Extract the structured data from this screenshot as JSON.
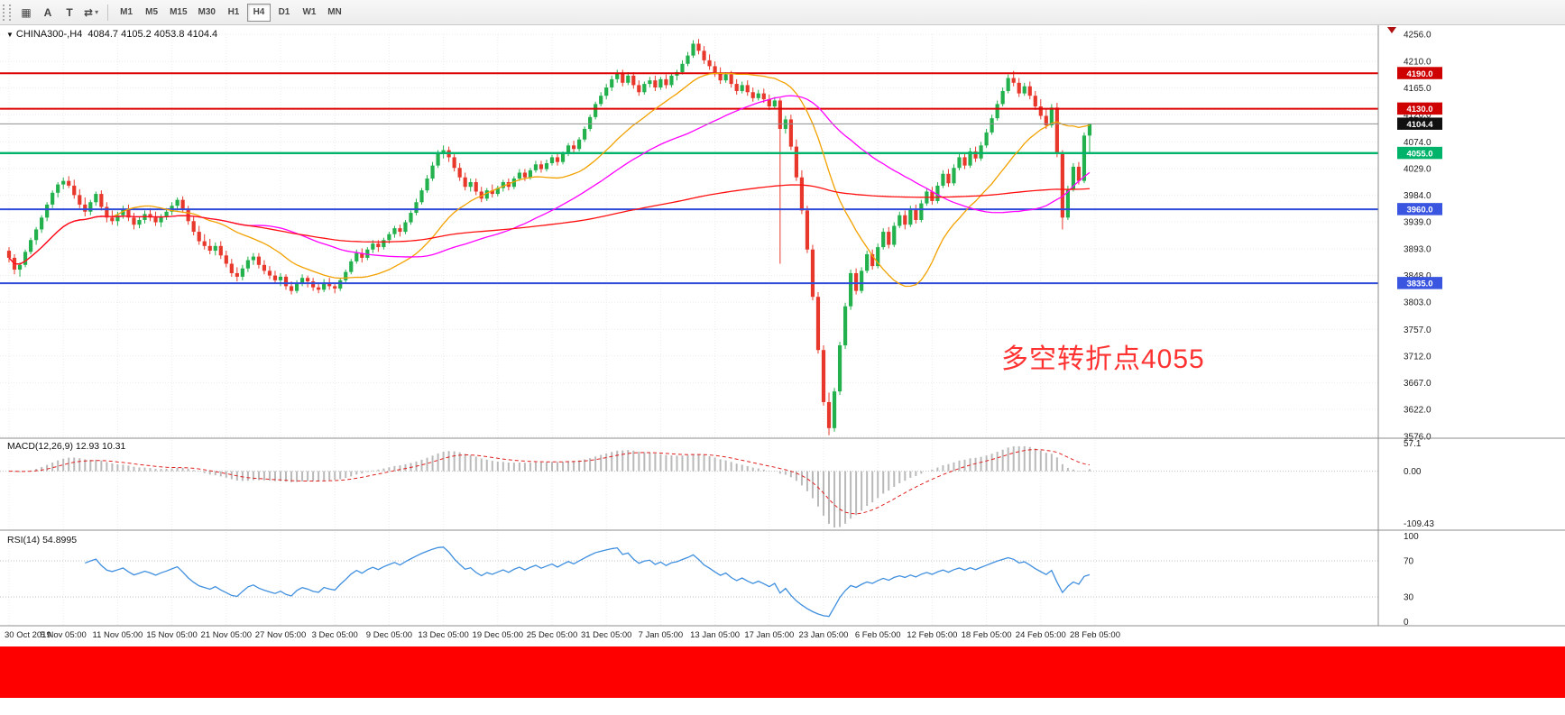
{
  "toolbar": {
    "icons": [
      {
        "name": "charts-grid",
        "glyph": "▦",
        "caret": false
      },
      {
        "name": "font-style",
        "glyph": "A",
        "caret": false
      },
      {
        "name": "text-object",
        "glyph": "T",
        "caret": false
      },
      {
        "name": "indicators",
        "glyph": "⇄",
        "caret": true
      }
    ],
    "timeframes": [
      {
        "label": "M1",
        "active": false
      },
      {
        "label": "M5",
        "active": false
      },
      {
        "label": "M15",
        "active": false
      },
      {
        "label": "M30",
        "active": false
      },
      {
        "label": "H1",
        "active": false
      },
      {
        "label": "H4",
        "active": true
      },
      {
        "label": "D1",
        "active": false
      },
      {
        "label": "W1",
        "active": false
      },
      {
        "label": "MN",
        "active": false
      }
    ]
  },
  "chart": {
    "title_marker": "▼",
    "symbol_label": "CHINA300-,H4",
    "ohlc_label": "4084.7 4105.2 4053.8 4104.4",
    "annotation": {
      "text": "多空转折点4055",
      "color": "#ff3232"
    },
    "y_axis_labels": [
      "4256.0",
      "4210.0",
      "4165.0",
      "4120.0",
      "4074.0",
      "4029.0",
      "3984.0",
      "3939.0",
      "3893.0",
      "3848.0",
      "3803.0",
      "3757.0",
      "3712.0",
      "3667.0",
      "3622.0",
      "3576.0"
    ],
    "x_labels": [
      "30 Oct 2019",
      "5 Nov 05:00",
      "11 Nov 05:00",
      "15 Nov 05:00",
      "21 Nov 05:00",
      "27 Nov 05:00",
      "3 Dec 05:00",
      "9 Dec 05:00",
      "13 Dec 05:00",
      "19 Dec 05:00",
      "25 Dec 05:00",
      "31 Dec 05:00",
      "7 Jan 05:00",
      "13 Jan 05:00",
      "17 Jan 05:00",
      "23 Jan 05:00",
      "6 Feb 05:00",
      "12 Feb 05:00",
      "18 Feb 05:00",
      "24 Feb 05:00",
      "28 Feb 05:00"
    ],
    "levels": [
      {
        "price": 4190.0,
        "label": "4190.0",
        "color": "#dc0000",
        "badge": "#cf0000",
        "width": 2
      },
      {
        "price": 4130.0,
        "label": "4130.0",
        "color": "#dc0000",
        "badge": "#cf0000",
        "width": 2
      },
      {
        "price": 4055.0,
        "label": "4055.0",
        "color": "#00b36b",
        "badge": "#00b36b",
        "width": 2.4
      },
      {
        "price": 3960.0,
        "label": "3960.0",
        "color": "#2f4cd8",
        "badge": "#3a56e0",
        "width": 2
      },
      {
        "price": 3835.0,
        "label": "3835.0",
        "color": "#2f4cd8",
        "badge": "#3a56e0",
        "width": 2
      }
    ],
    "bid": {
      "price": 4104.4,
      "label": "4104.4",
      "line_color": "#8e8e8e",
      "badge": "#101010"
    }
  },
  "chart_data": {
    "type": "candlestick",
    "symbol": "CHINA300-",
    "timeframe": "H4",
    "y_max": 4256.0,
    "y_min": 3576.0,
    "colors": {
      "up": "#22b14c",
      "down": "#e8382c",
      "ma_fast": "#f2a100",
      "ma_mid": "#ff00ff",
      "ma_slow": "#ff1010"
    },
    "ma_periods": {
      "fast": 20,
      "mid": 45,
      "slow": 200
    },
    "candles": [
      [
        3890,
        3896,
        3870,
        3878
      ],
      [
        3878,
        3884,
        3850,
        3858
      ],
      [
        3858,
        3870,
        3846,
        3866
      ],
      [
        3866,
        3892,
        3862,
        3888
      ],
      [
        3888,
        3912,
        3884,
        3908
      ],
      [
        3908,
        3930,
        3900,
        3926
      ],
      [
        3926,
        3950,
        3920,
        3946
      ],
      [
        3946,
        3972,
        3940,
        3968
      ],
      [
        3968,
        3992,
        3962,
        3988
      ],
      [
        3988,
        4006,
        3980,
        4002
      ],
      [
        4002,
        4014,
        3994,
        4008
      ],
      [
        4008,
        4016,
        3996,
        4000
      ],
      [
        4000,
        4010,
        3978,
        3984
      ],
      [
        3984,
        3994,
        3962,
        3968
      ],
      [
        3968,
        3980,
        3948,
        3956
      ],
      [
        3956,
        3976,
        3950,
        3972
      ],
      [
        3972,
        3990,
        3966,
        3986
      ],
      [
        3986,
        3992,
        3958,
        3964
      ],
      [
        3964,
        3972,
        3938,
        3946
      ],
      [
        3946,
        3958,
        3934,
        3940
      ],
      [
        3940,
        3956,
        3932,
        3950
      ],
      [
        3950,
        3966,
        3944,
        3960
      ],
      [
        3960,
        3968,
        3940,
        3946
      ],
      [
        3946,
        3954,
        3926,
        3934
      ],
      [
        3934,
        3948,
        3928,
        3942
      ],
      [
        3942,
        3958,
        3936,
        3952
      ],
      [
        3952,
        3962,
        3940,
        3946
      ],
      [
        3946,
        3956,
        3932,
        3938
      ],
      [
        3938,
        3952,
        3930,
        3948
      ],
      [
        3948,
        3962,
        3942,
        3956
      ],
      [
        3956,
        3972,
        3950,
        3966
      ],
      [
        3966,
        3980,
        3958,
        3976
      ],
      [
        3976,
        3982,
        3954,
        3960
      ],
      [
        3960,
        3966,
        3934,
        3940
      ],
      [
        3940,
        3948,
        3916,
        3922
      ],
      [
        3922,
        3932,
        3900,
        3906
      ],
      [
        3906,
        3918,
        3892,
        3898
      ],
      [
        3898,
        3910,
        3884,
        3890
      ],
      [
        3890,
        3904,
        3882,
        3898
      ],
      [
        3898,
        3906,
        3876,
        3882
      ],
      [
        3882,
        3890,
        3862,
        3868
      ],
      [
        3868,
        3876,
        3846,
        3852
      ],
      [
        3852,
        3862,
        3838,
        3846
      ],
      [
        3846,
        3866,
        3840,
        3860
      ],
      [
        3860,
        3880,
        3854,
        3874
      ],
      [
        3874,
        3886,
        3866,
        3880
      ],
      [
        3880,
        3886,
        3860,
        3866
      ],
      [
        3866,
        3874,
        3850,
        3856
      ],
      [
        3856,
        3864,
        3842,
        3848
      ],
      [
        3848,
        3856,
        3834,
        3840
      ],
      [
        3840,
        3852,
        3830,
        3846
      ],
      [
        3846,
        3850,
        3824,
        3830
      ],
      [
        3830,
        3838,
        3816,
        3822
      ],
      [
        3822,
        3840,
        3818,
        3836
      ],
      [
        3836,
        3850,
        3830,
        3844
      ],
      [
        3844,
        3848,
        3828,
        3838
      ],
      [
        3838,
        3844,
        3822,
        3828
      ],
      [
        3828,
        3836,
        3818,
        3824
      ],
      [
        3824,
        3842,
        3820,
        3836
      ],
      [
        3836,
        3844,
        3824,
        3830
      ],
      [
        3830,
        3836,
        3818,
        3826
      ],
      [
        3826,
        3844,
        3822,
        3840
      ],
      [
        3840,
        3858,
        3836,
        3854
      ],
      [
        3854,
        3876,
        3850,
        3872
      ],
      [
        3872,
        3892,
        3868,
        3886
      ],
      [
        3886,
        3894,
        3870,
        3878
      ],
      [
        3878,
        3896,
        3874,
        3892
      ],
      [
        3892,
        3908,
        3886,
        3902
      ],
      [
        3902,
        3908,
        3888,
        3896
      ],
      [
        3896,
        3912,
        3892,
        3908
      ],
      [
        3908,
        3922,
        3902,
        3918
      ],
      [
        3918,
        3932,
        3912,
        3928
      ],
      [
        3928,
        3934,
        3914,
        3922
      ],
      [
        3922,
        3942,
        3918,
        3938
      ],
      [
        3938,
        3958,
        3934,
        3954
      ],
      [
        3954,
        3978,
        3950,
        3972
      ],
      [
        3972,
        3996,
        3968,
        3992
      ],
      [
        3992,
        4018,
        3988,
        4012
      ],
      [
        4012,
        4040,
        4008,
        4034
      ],
      [
        4034,
        4060,
        4030,
        4054
      ],
      [
        4054,
        4068,
        4046,
        4060
      ],
      [
        4060,
        4066,
        4040,
        4048
      ],
      [
        4048,
        4056,
        4024,
        4030
      ],
      [
        4030,
        4038,
        4008,
        4014
      ],
      [
        4014,
        4022,
        3992,
        3998
      ],
      [
        3998,
        4012,
        3990,
        4006
      ],
      [
        4006,
        4012,
        3984,
        3990
      ],
      [
        3990,
        3998,
        3972,
        3978
      ],
      [
        3978,
        3996,
        3974,
        3992
      ],
      [
        3992,
        4002,
        3980,
        3986
      ],
      [
        3986,
        4000,
        3982,
        3996
      ],
      [
        3996,
        4010,
        3990,
        4006
      ],
      [
        4006,
        4012,
        3992,
        3998
      ],
      [
        3998,
        4016,
        3994,
        4012
      ],
      [
        4012,
        4028,
        4008,
        4022
      ],
      [
        4022,
        4028,
        4008,
        4014
      ],
      [
        4014,
        4030,
        4010,
        4026
      ],
      [
        4026,
        4042,
        4022,
        4036
      ],
      [
        4036,
        4042,
        4022,
        4028
      ],
      [
        4028,
        4044,
        4024,
        4038
      ],
      [
        4038,
        4052,
        4034,
        4048
      ],
      [
        4048,
        4054,
        4034,
        4040
      ],
      [
        4040,
        4058,
        4036,
        4054
      ],
      [
        4054,
        4072,
        4050,
        4068
      ],
      [
        4068,
        4076,
        4056,
        4062
      ],
      [
        4062,
        4082,
        4058,
        4078
      ],
      [
        4078,
        4100,
        4074,
        4096
      ],
      [
        4096,
        4120,
        4092,
        4116
      ],
      [
        4116,
        4142,
        4112,
        4138
      ],
      [
        4138,
        4158,
        4134,
        4152
      ],
      [
        4152,
        4172,
        4146,
        4166
      ],
      [
        4166,
        4186,
        4160,
        4180
      ],
      [
        4180,
        4196,
        4174,
        4190
      ],
      [
        4190,
        4196,
        4168,
        4174
      ],
      [
        4174,
        4192,
        4170,
        4186
      ],
      [
        4186,
        4192,
        4164,
        4170
      ],
      [
        4170,
        4178,
        4152,
        4158
      ],
      [
        4158,
        4176,
        4154,
        4172
      ],
      [
        4172,
        4184,
        4166,
        4178
      ],
      [
        4178,
        4186,
        4160,
        4166
      ],
      [
        4166,
        4184,
        4162,
        4180
      ],
      [
        4180,
        4188,
        4164,
        4170
      ],
      [
        4170,
        4190,
        4166,
        4186
      ],
      [
        4186,
        4196,
        4178,
        4192
      ],
      [
        4192,
        4212,
        4188,
        4206
      ],
      [
        4206,
        4226,
        4202,
        4220
      ],
      [
        4220,
        4246,
        4216,
        4240
      ],
      [
        4240,
        4248,
        4222,
        4228
      ],
      [
        4228,
        4236,
        4206,
        4212
      ],
      [
        4212,
        4222,
        4196,
        4202
      ],
      [
        4202,
        4210,
        4184,
        4190
      ],
      [
        4190,
        4200,
        4172,
        4178
      ],
      [
        4178,
        4192,
        4174,
        4188
      ],
      [
        4188,
        4194,
        4166,
        4172
      ],
      [
        4172,
        4180,
        4154,
        4160
      ],
      [
        4160,
        4176,
        4156,
        4170
      ],
      [
        4170,
        4178,
        4152,
        4158
      ],
      [
        4158,
        4166,
        4142,
        4148
      ],
      [
        4148,
        4162,
        4144,
        4156
      ],
      [
        4156,
        4164,
        4140,
        4146
      ],
      [
        4146,
        4154,
        4128,
        4134
      ],
      [
        4134,
        4150,
        4130,
        4144
      ],
      [
        4144,
        4148,
        3868,
        4096
      ],
      [
        4096,
        4118,
        4088,
        4112
      ],
      [
        4112,
        4120,
        4060,
        4066
      ],
      [
        4066,
        4078,
        4008,
        4014
      ],
      [
        4014,
        4026,
        3952,
        3958
      ],
      [
        3958,
        3966,
        3886,
        3892
      ],
      [
        3892,
        3900,
        3806,
        3812
      ],
      [
        3812,
        3820,
        3716,
        3722
      ],
      [
        3722,
        3730,
        3628,
        3634
      ],
      [
        3634,
        3650,
        3578,
        3590
      ],
      [
        3590,
        3658,
        3584,
        3652
      ],
      [
        3652,
        3736,
        3646,
        3730
      ],
      [
        3730,
        3802,
        3724,
        3796
      ],
      [
        3796,
        3858,
        3790,
        3852
      ],
      [
        3852,
        3860,
        3816,
        3822
      ],
      [
        3822,
        3862,
        3818,
        3856
      ],
      [
        3856,
        3890,
        3852,
        3884
      ],
      [
        3884,
        3892,
        3858,
        3864
      ],
      [
        3864,
        3902,
        3860,
        3896
      ],
      [
        3896,
        3928,
        3892,
        3922
      ],
      [
        3922,
        3930,
        3894,
        3900
      ],
      [
        3900,
        3938,
        3896,
        3932
      ],
      [
        3932,
        3956,
        3928,
        3950
      ],
      [
        3950,
        3958,
        3926,
        3934
      ],
      [
        3934,
        3966,
        3930,
        3960
      ],
      [
        3960,
        3968,
        3936,
        3942
      ],
      [
        3942,
        3976,
        3938,
        3970
      ],
      [
        3970,
        3996,
        3966,
        3990
      ],
      [
        3990,
        3998,
        3968,
        3974
      ],
      [
        3974,
        4006,
        3970,
        4000
      ],
      [
        4000,
        4026,
        3996,
        4020
      ],
      [
        4020,
        4028,
        3998,
        4004
      ],
      [
        4004,
        4036,
        4000,
        4030
      ],
      [
        4030,
        4054,
        4026,
        4048
      ],
      [
        4048,
        4056,
        4028,
        4034
      ],
      [
        4034,
        4064,
        4030,
        4058
      ],
      [
        4058,
        4066,
        4040,
        4046
      ],
      [
        4046,
        4074,
        4042,
        4068
      ],
      [
        4068,
        4096,
        4064,
        4090
      ],
      [
        4090,
        4120,
        4086,
        4114
      ],
      [
        4114,
        4144,
        4110,
        4138
      ],
      [
        4138,
        4166,
        4134,
        4160
      ],
      [
        4160,
        4188,
        4156,
        4182
      ],
      [
        4182,
        4194,
        4168,
        4174
      ],
      [
        4174,
        4182,
        4150,
        4156
      ],
      [
        4156,
        4174,
        4152,
        4168
      ],
      [
        4168,
        4176,
        4146,
        4152
      ],
      [
        4152,
        4160,
        4128,
        4134
      ],
      [
        4134,
        4146,
        4112,
        4118
      ],
      [
        4118,
        4130,
        4096,
        4102
      ],
      [
        4102,
        4138,
        4098,
        4132
      ],
      [
        4132,
        4140,
        4048,
        4054
      ],
      [
        4054,
        4060,
        3926,
        3946
      ],
      [
        3946,
        4000,
        3942,
        3994
      ],
      [
        3994,
        4038,
        3990,
        4032
      ],
      [
        4032,
        4040,
        4002,
        4008
      ],
      [
        4008,
        4090,
        4004,
        4084.7
      ],
      [
        4084.7,
        4105.2,
        4053.8,
        4104.4
      ]
    ]
  },
  "macd": {
    "label": "MACD(12,26,9) 12.93 10.31",
    "axis": [
      "57.1",
      "0.00",
      "-109.43"
    ],
    "params": {
      "fast": 12,
      "slow": 26,
      "signal": 9
    },
    "hist_color": "#b9b9b9",
    "signal_color": "#e02020"
  },
  "rsi": {
    "label": "RSI(14) 54.8995",
    "axis": [
      "100",
      "70",
      "30",
      "0"
    ],
    "period": 14,
    "levels": [
      70,
      30
    ],
    "line_color": "#3f8fdf"
  },
  "footer": {
    "color": "#fe0000"
  }
}
